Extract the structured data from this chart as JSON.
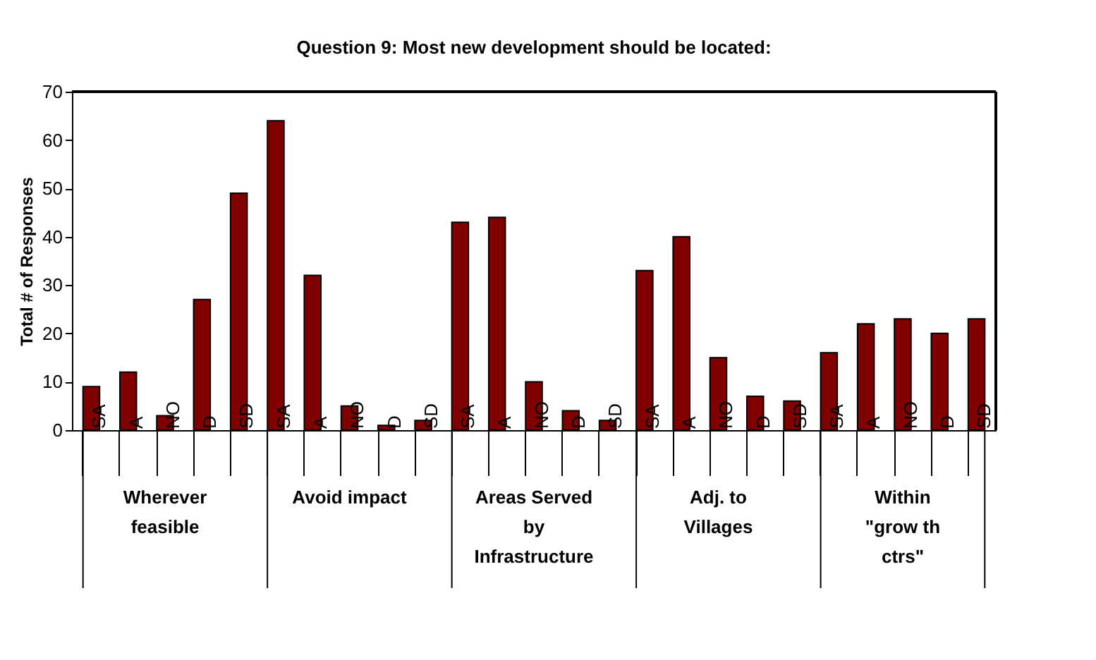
{
  "chart_data": {
    "type": "bar",
    "title": "Question 9: Most new development should be located:",
    "ylabel": "Total # of Responses",
    "categories": [
      "SA",
      "A",
      "NO",
      "D",
      "SD",
      "SA",
      "A",
      "NO",
      "D",
      "SD",
      "SA",
      "A",
      "NO",
      "D",
      "SD",
      "SA",
      "A",
      "NO",
      "D",
      "SD",
      "SA",
      "A",
      "NO",
      "D",
      "SD"
    ],
    "values": [
      9,
      12,
      3,
      27,
      49,
      64,
      32,
      5,
      1,
      2,
      43,
      44,
      10,
      4,
      2,
      33,
      40,
      15,
      7,
      6,
      16,
      22,
      23,
      20,
      23
    ],
    "color": "#800000",
    "ylim": [
      0,
      70
    ],
    "yticks": [
      0,
      10,
      20,
      30,
      40,
      50,
      60,
      70
    ],
    "grid": false,
    "annotations": [
      "Wherever\nfeasible",
      "Avoid impact",
      "Areas Served\nby\nInfrastructure",
      "Adj. to\nVillages",
      "Within\n\"grow th\nctrs\""
    ]
  }
}
